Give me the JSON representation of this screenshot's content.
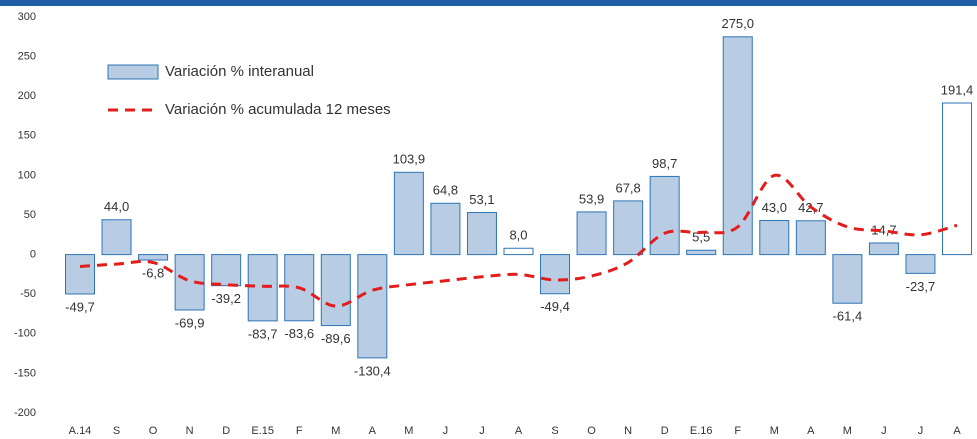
{
  "chart_data": {
    "type": "bar-line",
    "categories": [
      "A.14",
      "S",
      "O",
      "N",
      "D",
      "E.15",
      "F",
      "M",
      "A",
      "M",
      "J",
      "J",
      "A",
      "S",
      "O",
      "N",
      "D",
      "E.16",
      "F",
      "M",
      "A",
      "M",
      "J",
      "J",
      "A"
    ],
    "series": [
      {
        "name": "Variación % interanual",
        "type": "bar",
        "color": "#b8cce4",
        "border": "#2e75b6",
        "bar_colors": [
          "#b8cce4",
          "#b8cce4",
          "#b8cce4",
          "#b8cce4",
          "#b8cce4",
          "#b8cce4",
          "#b8cce4",
          "#b8cce4",
          "#b8cce4",
          "#b8cce4",
          "#b8cce4",
          "#b8cce4",
          "#ffffff",
          "#b8cce4",
          "#b8cce4",
          "#b8cce4",
          "#b8cce4",
          "#b8cce4",
          "#b8cce4",
          "#b8cce4",
          "#b8cce4",
          "#b8cce4",
          "#b8cce4",
          "#b8cce4",
          "#ffffff"
        ],
        "values": [
          -49.7,
          44.0,
          -6.8,
          -69.9,
          -39.2,
          -83.7,
          -83.6,
          -89.6,
          -130.4,
          103.9,
          64.8,
          53.1,
          8.0,
          -49.4,
          53.9,
          67.8,
          98.7,
          5.5,
          275.0,
          43.0,
          42.7,
          -61.4,
          14.7,
          -23.7,
          191.4
        ],
        "value_labels": [
          "-49,7",
          "44,0",
          "-6,8",
          "-69,9",
          "-39,2",
          "-83,7",
          "-83,6",
          "-89,6",
          "-130,4",
          "103,9",
          "64,8",
          "53,1",
          "8,0",
          "-49,4",
          "53,9",
          "67,8",
          "98,7",
          "5,5",
          "275,0",
          "43,0",
          "42,7",
          "-61,4",
          "14,7",
          "-23,7",
          "191,4"
        ]
      },
      {
        "name": "Variación % acumulada 12 meses",
        "type": "line",
        "color": "#e31c1c",
        "values": [
          -15,
          -12,
          -10,
          -33,
          -38,
          -40,
          -42,
          -65,
          -45,
          -38,
          -33,
          -28,
          -25,
          -32,
          -27,
          -10,
          27,
          28,
          35,
          100,
          60,
          35,
          30,
          25,
          37
        ]
      }
    ],
    "ylim": [
      -200,
      300
    ],
    "yticks": [
      -200,
      -150,
      -100,
      -50,
      0,
      50,
      100,
      150,
      200,
      250,
      300
    ]
  }
}
